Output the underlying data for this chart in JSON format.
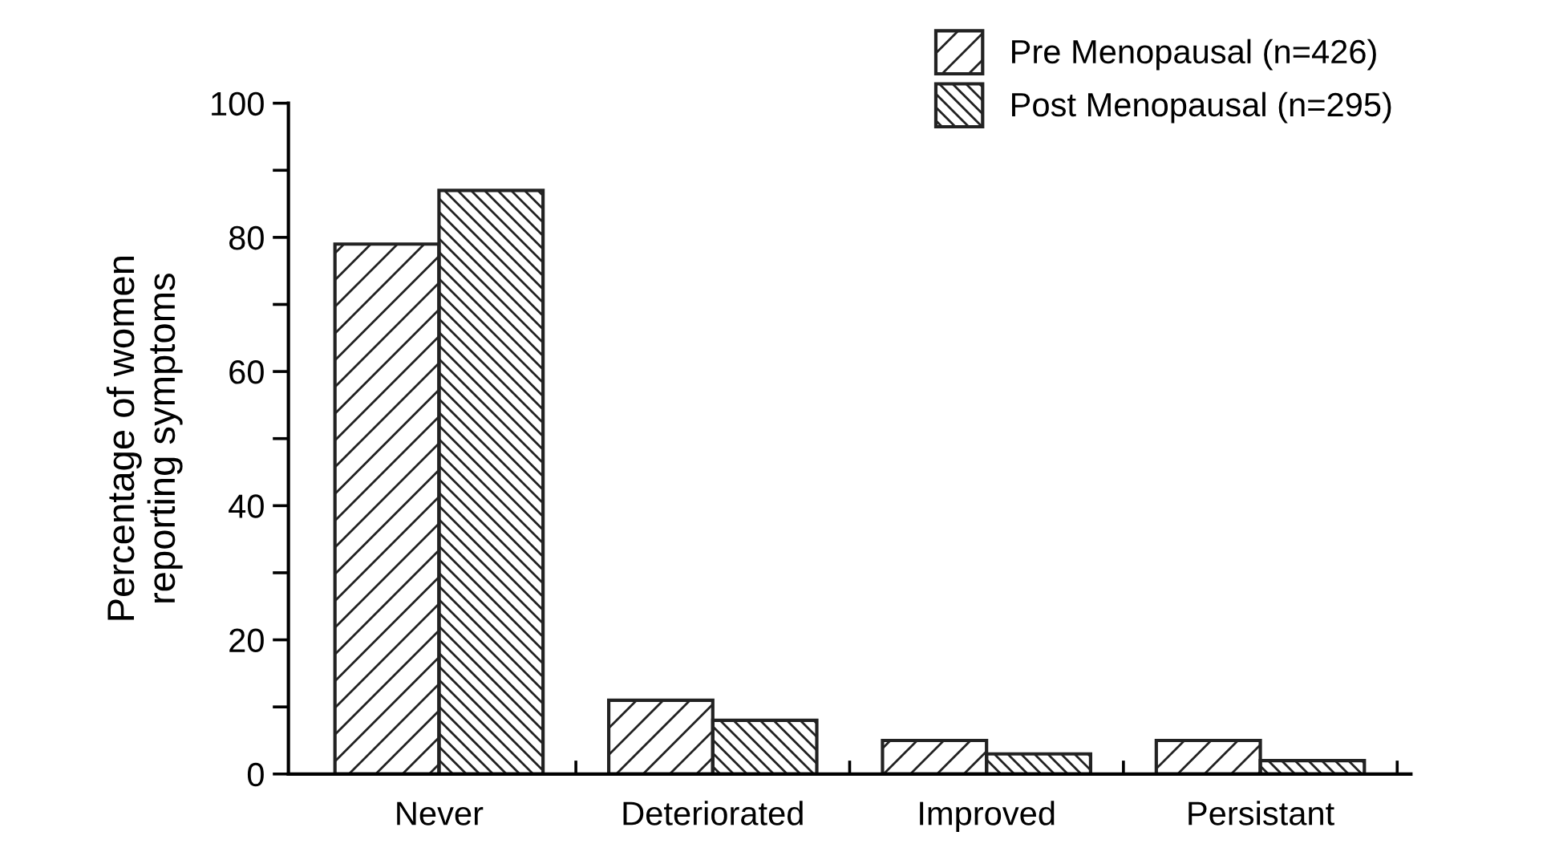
{
  "chart_data": {
    "type": "bar",
    "ylabel": "Percentage of women\nreporting symptoms",
    "categories": [
      "Never",
      "Deteriorated",
      "Improved",
      "Persistant"
    ],
    "series": [
      {
        "name": "Pre Menopausal (n=426)",
        "color": "#222222",
        "values": [
          79,
          11,
          5,
          5
        ]
      },
      {
        "name": "Post Menopausal (n=295)",
        "color": "#222222",
        "values": [
          87,
          8,
          3,
          2
        ]
      }
    ],
    "ylim": [
      0,
      100
    ],
    "yticks": [
      0,
      {
        "value": 10,
        "label": null
      },
      20,
      {
        "value": 30,
        "label": null
      },
      40,
      {
        "value": 50,
        "label": null
      },
      60,
      {
        "value": 70,
        "label": null
      },
      80,
      {
        "value": 90,
        "label": null
      },
      100
    ],
    "grid": false,
    "legend": "top right"
  }
}
